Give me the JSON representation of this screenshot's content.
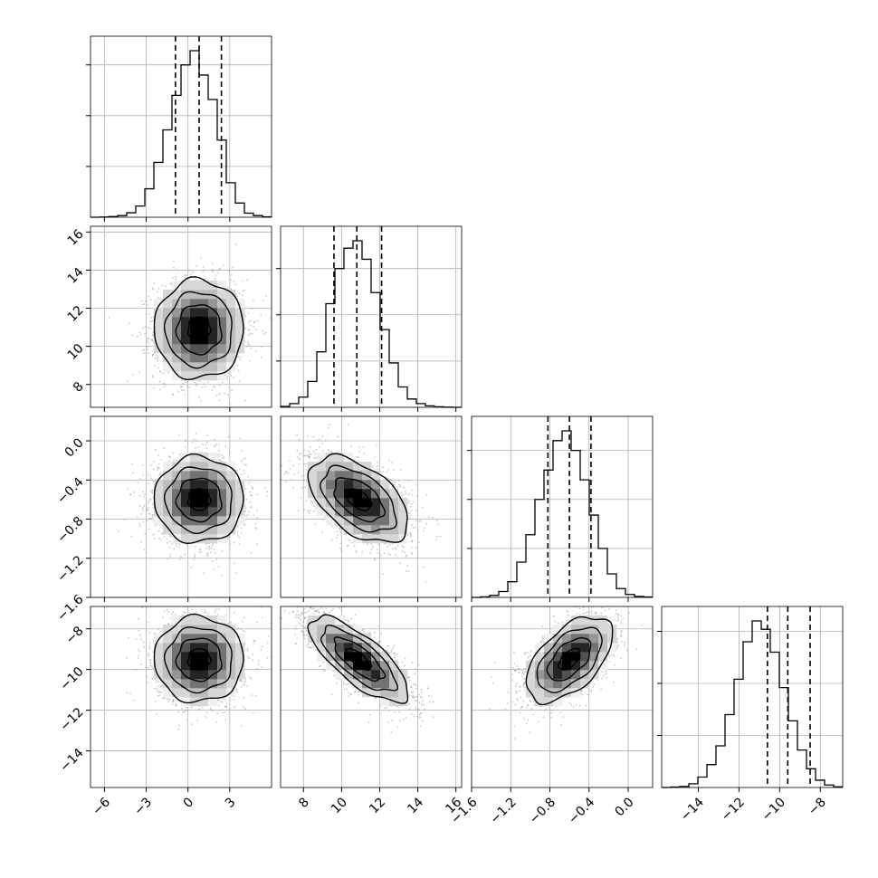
{
  "chart_data": {
    "type": "corner",
    "grid": true,
    "quantiles": [
      0.16,
      0.5,
      0.84
    ],
    "parameters": [
      {
        "range": [
          -7,
          6
        ],
        "ticks": [
          -6,
          -3,
          0,
          3
        ],
        "tick_labels": [
          "−6",
          "−3",
          "0",
          "3"
        ],
        "quantiles": [
          -0.9,
          0.8,
          2.4
        ],
        "mean": 0.8,
        "std": 1.6
      },
      {
        "range": [
          6.8,
          16.3
        ],
        "ticks": [
          8,
          10,
          12,
          14,
          16
        ],
        "tick_labels": [
          "8",
          "10",
          "12",
          "14",
          "16"
        ],
        "quantiles": [
          9.6,
          10.8,
          12.1
        ],
        "mean": 10.9,
        "std": 1.3
      },
      {
        "range": [
          -1.6,
          0.25
        ],
        "ticks": [
          -1.6,
          -1.2,
          -0.8,
          -0.4,
          0.0
        ],
        "tick_labels": [
          "−1.6",
          "−1.2",
          "−0.8",
          "−0.4",
          "0.0"
        ],
        "quantiles": [
          -0.82,
          -0.6,
          -0.38
        ],
        "mean": -0.6,
        "std": 0.22
      },
      {
        "range": [
          -15.8,
          -6.9
        ],
        "ticks": [
          -14,
          -12,
          -10,
          -8
        ],
        "tick_labels": [
          "−14",
          "−12",
          "−10",
          "−8"
        ],
        "quantiles": [
          -10.6,
          -9.6,
          -8.5
        ],
        "mean": -9.5,
        "std": 1.05
      }
    ],
    "histograms": [
      {
        "param": 0,
        "bins": [
          -7,
          -6.35,
          -5.7,
          -5.05,
          -4.4,
          -3.75,
          -3.1,
          -2.45,
          -1.8,
          -1.15,
          -0.5,
          0.15,
          0.8,
          1.45,
          2.1,
          2.75,
          3.4,
          4.05,
          4.7,
          5.35,
          6
        ],
        "counts": [
          0,
          1,
          3,
          8,
          22,
          55,
          140,
          270,
          430,
          600,
          750,
          820,
          700,
          580,
          380,
          170,
          70,
          20,
          8,
          2
        ]
      },
      {
        "param": 1,
        "bins": [
          6.8,
          7.275,
          7.75,
          8.225,
          8.7,
          9.175,
          9.65,
          10.125,
          10.6,
          11.075,
          11.55,
          12.025,
          12.5,
          12.975,
          13.45,
          13.925,
          14.4,
          14.875,
          15.35,
          15.825,
          16.3
        ],
        "counts": [
          5,
          20,
          55,
          140,
          300,
          560,
          750,
          860,
          900,
          800,
          620,
          420,
          240,
          110,
          45,
          20,
          8,
          3,
          1,
          0
        ]
      },
      {
        "param": 2,
        "bins": [
          -1.6,
          -1.5075,
          -1.415,
          -1.3225,
          -1.23,
          -1.1375,
          -1.045,
          -0.9525,
          -0.86,
          -0.7675,
          -0.675,
          -0.5825,
          -0.49,
          -0.3975,
          -0.305,
          -0.2125,
          -0.12,
          -0.0275,
          0.065,
          0.1575,
          0.25
        ],
        "counts": [
          0,
          3,
          10,
          30,
          80,
          180,
          320,
          500,
          650,
          800,
          850,
          750,
          600,
          420,
          250,
          120,
          45,
          15,
          5,
          2
        ]
      },
      {
        "param": 3,
        "bins": [
          -15.8,
          -15.355,
          -14.91,
          -14.465,
          -14.02,
          -13.575,
          -13.13,
          -12.685,
          -12.24,
          -11.795,
          -11.35,
          -10.905,
          -10.46,
          -10.015,
          -9.57,
          -9.125,
          -8.68,
          -8.235,
          -7.79,
          -7.345,
          -6.9
        ],
        "counts": [
          0,
          2,
          5,
          18,
          50,
          110,
          200,
          350,
          520,
          700,
          800,
          760,
          650,
          480,
          320,
          180,
          90,
          35,
          12,
          3
        ]
      }
    ],
    "joint_panels": [
      {
        "x_param": 0,
        "y_param": 1,
        "mean": [
          0.8,
          10.9
        ],
        "std": [
          1.6,
          1.3
        ],
        "corr": 0.0
      },
      {
        "x_param": 0,
        "y_param": 2,
        "mean": [
          0.8,
          -0.6
        ],
        "std": [
          1.6,
          0.22
        ],
        "corr": 0.0
      },
      {
        "x_param": 1,
        "y_param": 2,
        "mean": [
          10.9,
          -0.6
        ],
        "std": [
          1.3,
          0.22
        ],
        "corr": -0.5
      },
      {
        "x_param": 0,
        "y_param": 3,
        "mean": [
          0.8,
          -9.5
        ],
        "std": [
          1.6,
          1.05
        ],
        "corr": 0.0
      },
      {
        "x_param": 1,
        "y_param": 3,
        "mean": [
          10.9,
          -9.5
        ],
        "std": [
          1.3,
          1.05
        ],
        "corr": -0.75
      },
      {
        "x_param": 2,
        "y_param": 3,
        "mean": [
          -0.6,
          -9.5
        ],
        "std": [
          0.22,
          1.05
        ],
        "corr": 0.55
      }
    ],
    "contour_levels_sigma": [
      0.5,
      1.0,
      1.5,
      2.0
    ]
  }
}
